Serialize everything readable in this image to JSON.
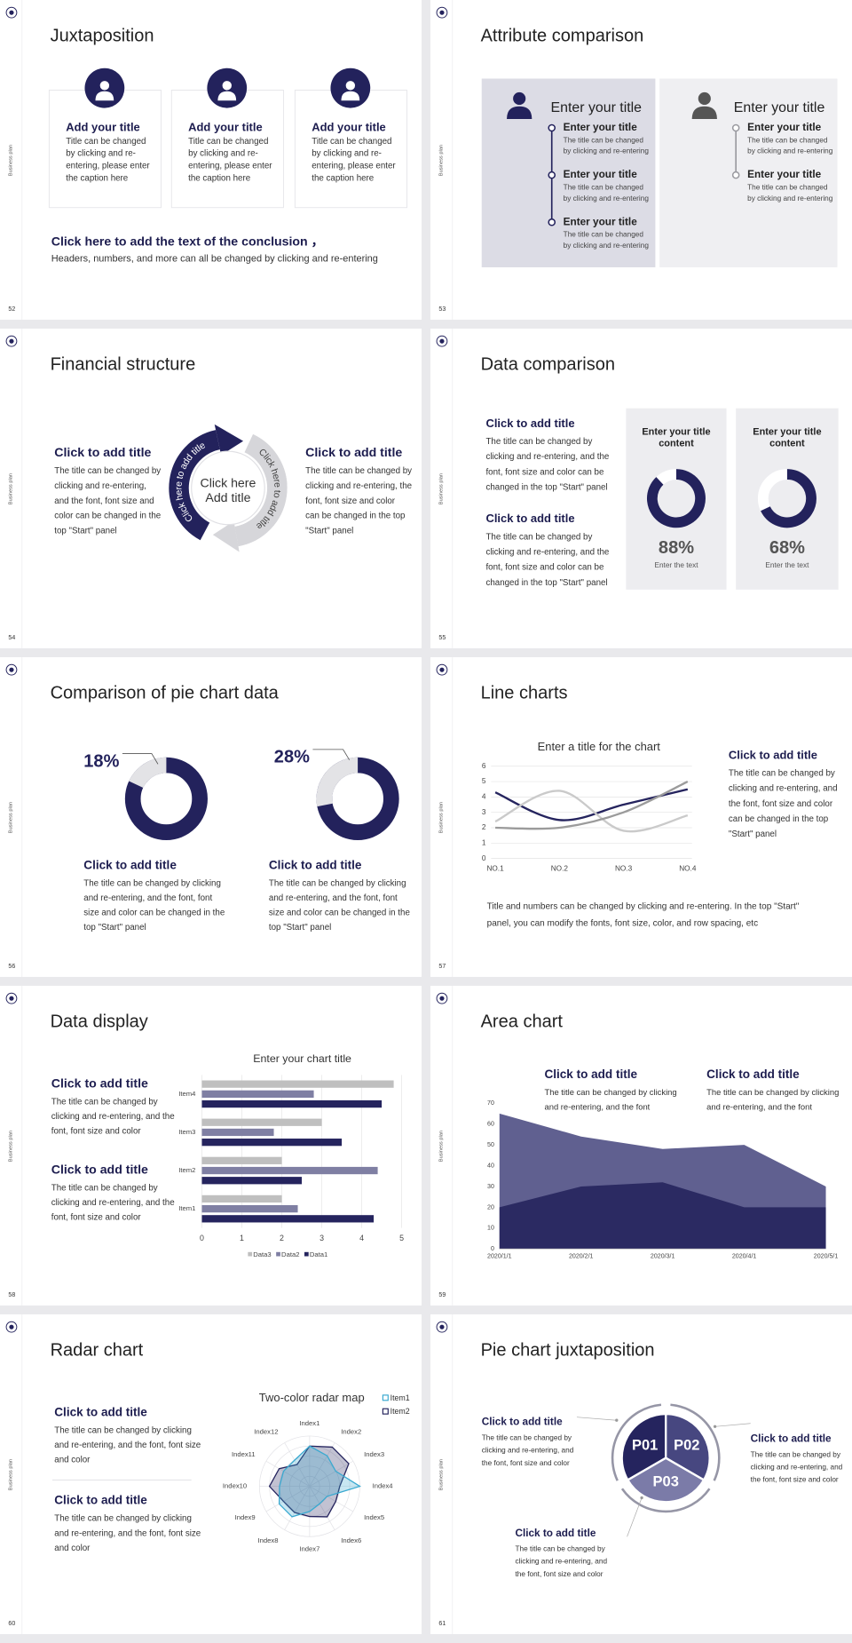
{
  "slides": [
    {
      "title": "Juxtaposition",
      "side_label": "Business plan",
      "page_number": 52,
      "cards": [
        {
          "title": "Add your title",
          "lines": [
            "Title can be changed",
            "by clicking and re-",
            "entering, please enter",
            "the caption here"
          ]
        },
        {
          "title": "Add your title",
          "lines": [
            "Title can be changed",
            "by clicking and re-",
            "entering, please enter",
            "the caption here"
          ]
        },
        {
          "title": "Add your title",
          "lines": [
            "Title can be changed",
            "by clicking and re-",
            "entering, please enter",
            "the caption here"
          ]
        }
      ],
      "conclusion": {
        "title": "Click here to add the text of the conclusion ，",
        "text": "Headers, numbers, and more can all be changed by clicking and re-entering"
      }
    },
    {
      "title": "Attribute comparison",
      "side_label": "Business plan",
      "page_number": 53,
      "panels": [
        {
          "heading": "Enter your title",
          "items": [
            {
              "title": "Enter your title",
              "lines": [
                "The title can be changed",
                "by clicking and re-entering"
              ]
            },
            {
              "title": "Enter your title",
              "lines": [
                "The title can be changed",
                "by clicking and re-entering"
              ]
            },
            {
              "title": "Enter your title",
              "lines": [
                "The title can be changed",
                "by clicking and re-entering"
              ]
            }
          ]
        },
        {
          "heading": "Enter your title",
          "items": [
            {
              "title": "Enter your title",
              "lines": [
                "The title can be changed",
                "by clicking and re-entering"
              ]
            },
            {
              "title": "Enter your title",
              "lines": [
                "The title can be changed",
                "by clicking and re-entering"
              ]
            }
          ]
        }
      ]
    },
    {
      "title": "Financial structure",
      "side_label": "Business plan",
      "page_number": 54,
      "blocks": [
        {
          "title": "Click to add title",
          "lines": [
            "The title can be changed by",
            "clicking and re-entering,",
            "and the font, font size and",
            "color can be changed in the",
            "top \"Start\" panel"
          ]
        },
        {
          "title": "Click to add title",
          "lines": [
            "The title can be changed by",
            "clicking and re-entering, the",
            "font, font size and color",
            "can be changed in the top",
            "\"Start\" panel"
          ]
        }
      ],
      "center": [
        "Click here",
        "Add title"
      ],
      "arc_labels": [
        "Click here to add title",
        "Click here to add title"
      ]
    },
    {
      "title": "Data comparison",
      "side_label": "Business plan",
      "page_number": 55,
      "blocks": [
        {
          "title": "Click to add title",
          "lines": [
            "The title can be changed by",
            "clicking and re-entering, and the",
            "font, font size and color can be",
            "changed in the top \"Start\" panel"
          ]
        },
        {
          "title": "Click to add title",
          "lines": [
            "The title can be changed by",
            "clicking and re-entering, and the",
            "font, font size and color can be",
            "changed in the top \"Start\" panel"
          ]
        }
      ],
      "cards": [
        {
          "title_lines": [
            "Enter your title",
            "content"
          ],
          "value": 88,
          "value_label": "88%",
          "caption": "Enter the text"
        },
        {
          "title_lines": [
            "Enter your title",
            "content"
          ],
          "value": 68,
          "value_label": "68%",
          "caption": "Enter the text"
        }
      ]
    },
    {
      "title": "Comparison of pie chart data",
      "side_label": "Business plan",
      "page_number": 56,
      "donuts": [
        {
          "value": 18,
          "value_label": "18%",
          "title": "Click to add title",
          "lines": [
            "The title can be changed by clicking",
            "and re-entering, and the font, font",
            "size and color can be changed in the",
            "top \"Start\" panel"
          ]
        },
        {
          "value": 28,
          "value_label": "28%",
          "title": "Click to add title",
          "lines": [
            "The title can be changed by clicking",
            "and re-entering, and the font, font",
            "size and color can be changed in the",
            "top \"Start\" panel"
          ]
        }
      ]
    },
    {
      "title": "Line charts",
      "side_label": "Business plan",
      "page_number": 57,
      "chart_data": {
        "type": "line",
        "title": "Enter a title for the chart",
        "categories": [
          "NO.1",
          "NO.2",
          "NO.3",
          "NO.4"
        ],
        "ylim": [
          0,
          6
        ],
        "yticks": [
          0,
          1,
          2,
          3,
          4,
          5,
          6
        ],
        "grid": true,
        "smooth": true,
        "series": [
          {
            "color": "#25245e",
            "values": [
              4.3,
              2.5,
              3.5,
              4.5
            ]
          },
          {
            "color": "#cacaca",
            "values": [
              2.4,
              4.4,
              1.8,
              2.8
            ]
          },
          {
            "color": "#9b9b9b",
            "values": [
              2,
              2,
              3,
              5
            ]
          }
        ]
      },
      "block": {
        "title": "Click to add title",
        "lines": [
          "The title can be changed by",
          "clicking and re-entering, and",
          "the font, font size and color",
          "can be changed in the top",
          "\"Start\" panel"
        ]
      },
      "note_lines": [
        "Title and numbers can be changed by clicking and re-entering. In the top \"Start\"",
        "panel, you can modify the fonts, font size, color, and row spacing, etc"
      ]
    },
    {
      "title": "Data display",
      "side_label": "Business plan",
      "page_number": 58,
      "chart_data": {
        "type": "bar",
        "orientation": "horizontal",
        "title": "Enter your chart title",
        "categories": [
          "Item1",
          "Item2",
          "Item3",
          "Item4"
        ],
        "xlim": [
          0,
          5
        ],
        "xticks": [
          0,
          1,
          2,
          3,
          4,
          5
        ],
        "grid": true,
        "legend": "bottom",
        "series": [
          {
            "name": "Data3",
            "color": "#bfbfbf",
            "values": [
              2,
              2,
              3,
              4.8
            ]
          },
          {
            "name": "Data2",
            "color": "#7f7fa3",
            "values": [
              2.4,
              4.4,
              1.8,
              2.8
            ]
          },
          {
            "name": "Data1",
            "color": "#25245e",
            "values": [
              4.3,
              2.5,
              3.5,
              4.5
            ]
          }
        ]
      },
      "blocks": [
        {
          "title": "Click to add title",
          "lines": [
            "The title can be changed by",
            "clicking and re-entering, and the",
            "font, font size and color"
          ]
        },
        {
          "title": "Click to add title",
          "lines": [
            "The title can be changed by",
            "clicking and re-entering, and the",
            "font, font size and color"
          ]
        }
      ]
    },
    {
      "title": "Area chart",
      "side_label": "Business plan",
      "page_number": 59,
      "chart_data": {
        "type": "area",
        "x": [
          "2020/1/1",
          "2020/2/1",
          "2020/3/1",
          "2020/4/1",
          "2020/5/1"
        ],
        "ylim": [
          0,
          70
        ],
        "yticks": [
          0,
          10,
          20,
          30,
          40,
          50,
          60,
          70
        ],
        "series": [
          {
            "color": "#606090",
            "values": [
              65,
              54,
              48,
              50,
              30
            ]
          },
          {
            "color": "#2b2a62",
            "values": [
              20,
              30,
              32,
              20,
              20
            ]
          }
        ]
      },
      "blocks": [
        {
          "title": "Click to add title",
          "lines": [
            "The title can be changed by clicking",
            "and re-entering, and the font"
          ]
        },
        {
          "title": "Click to add title",
          "lines": [
            "The title can be changed by clicking",
            "and re-entering, and the font"
          ]
        }
      ]
    },
    {
      "title": "Radar chart",
      "side_label": "Business plan",
      "page_number": 60,
      "chart_data": {
        "type": "radar",
        "title": "Two-color radar map",
        "categories": [
          "Index1",
          "Index2",
          "Index3",
          "Index4",
          "Index5",
          "Index6",
          "Index7",
          "Index8",
          "Index9",
          "Index10",
          "Index11",
          "Index12"
        ],
        "rlim": [
          0,
          5
        ],
        "legend": "top-right",
        "series": [
          {
            "name": "Item1",
            "color": "#3aa9d0",
            "values": [
              4,
              3.5,
              3,
              5,
              2,
              2,
              2.5,
              3.5,
              3.5,
              3,
              3,
              3
            ]
          },
          {
            "name": "Item2",
            "color": "#25245e",
            "values": [
              4,
              4.5,
              4.5,
              3,
              3,
              3.5,
              3,
              3,
              3,
              4,
              3.5,
              2.5
            ]
          }
        ]
      },
      "blocks": [
        {
          "title": "Click to add title",
          "lines": [
            "The title can be changed by clicking",
            "and re-entering, and the font, font size",
            "and color"
          ]
        },
        {
          "title": "Click to add title",
          "lines": [
            "The title can be changed by clicking",
            "and re-entering, and the font, font size",
            "and color"
          ]
        }
      ]
    },
    {
      "title": "Pie chart juxtaposition",
      "side_label": "Business plan",
      "page_number": 61,
      "segments": [
        "P01",
        "P02",
        "P03"
      ],
      "blocks": [
        {
          "title": "Click to add title",
          "lines": [
            "The title can be changed by",
            "clicking and re-entering, and",
            "the font, font size and color"
          ]
        },
        {
          "title": "Click to add title",
          "lines": [
            "The title can be changed by",
            "clicking and re-entering, and",
            "the font, font size and color"
          ]
        },
        {
          "title": "Click to add title",
          "lines": [
            "The title can be changed by",
            "clicking and re-entering, and",
            "the font, font size and color"
          ]
        }
      ]
    }
  ]
}
